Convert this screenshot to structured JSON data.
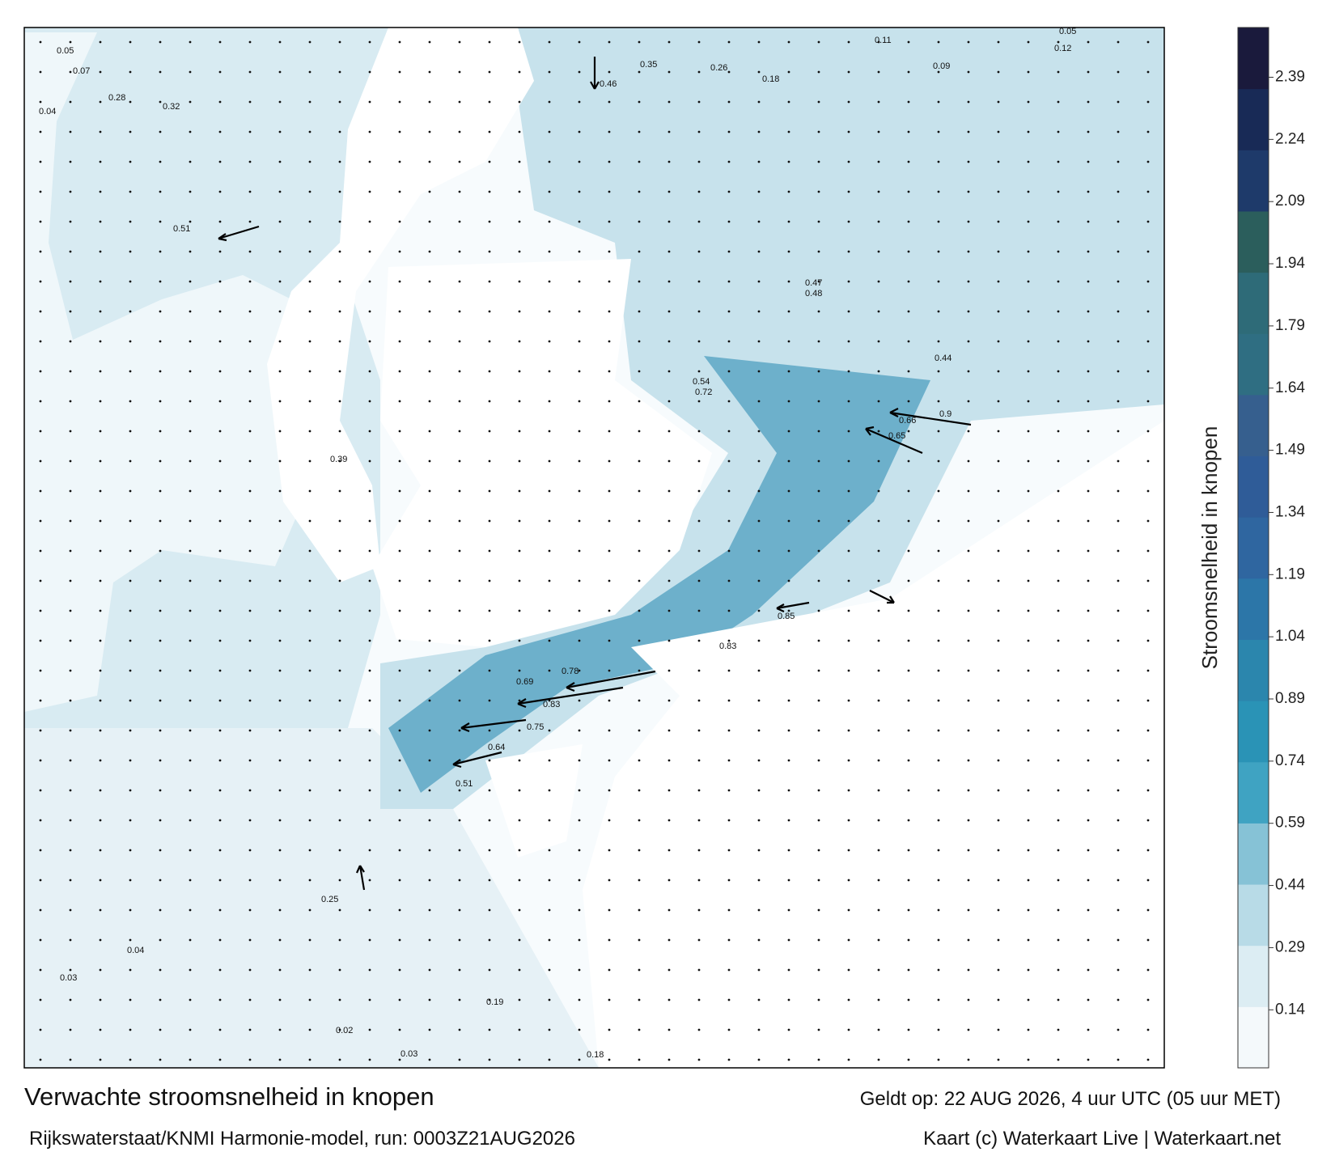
{
  "colorbar": {
    "label": "Stroomsnelheid in knopen",
    "range": [
      0,
      2.51
    ],
    "ticks": [
      0.14,
      0.29,
      0.44,
      0.59,
      0.74,
      0.89,
      1.04,
      1.19,
      1.34,
      1.49,
      1.64,
      1.79,
      1.94,
      2.09,
      2.24,
      2.39
    ],
    "colors": [
      "#f4f9fb",
      "#dcedf3",
      "#b8dbe7",
      "#86c2d6",
      "#3fa3c2",
      "#2a93b6",
      "#2b86ad",
      "#2c76a8",
      "#2f66a0",
      "#2f5c98",
      "#365f8e",
      "#2f6e82",
      "#2e6b78",
      "#2b5e5c",
      "#1e3a6a",
      "#182a56",
      "#1a1a3c"
    ]
  },
  "footer": {
    "title": "Verwachte stroomsnelheid in knopen",
    "source": "Rijkswaterstaat/KNMI Harmonie-model, run: 0003Z21AUG2026",
    "valid": "Geldt op: 22 AUG 2026, 4 uur UTC (05 uur MET)",
    "credit": "Kaart (c) Waterkaart Live | Waterkaart.net"
  },
  "map_labels": [
    0.05,
    0.07,
    0.04,
    0.28,
    0.32,
    0.51,
    0.46,
    0.35,
    0.26,
    0.18,
    0.11,
    0.09,
    0.47,
    0.48,
    0.65,
    0.66,
    0.9,
    0.85,
    0.83,
    0.78,
    0.69,
    0.83,
    0.75,
    0.64,
    0.51,
    0.25,
    0.19,
    0.18,
    0.03,
    0.02,
    0.03,
    0.04,
    0.39,
    0.54,
    0.72,
    0.44,
    0.12,
    0.05
  ]
}
